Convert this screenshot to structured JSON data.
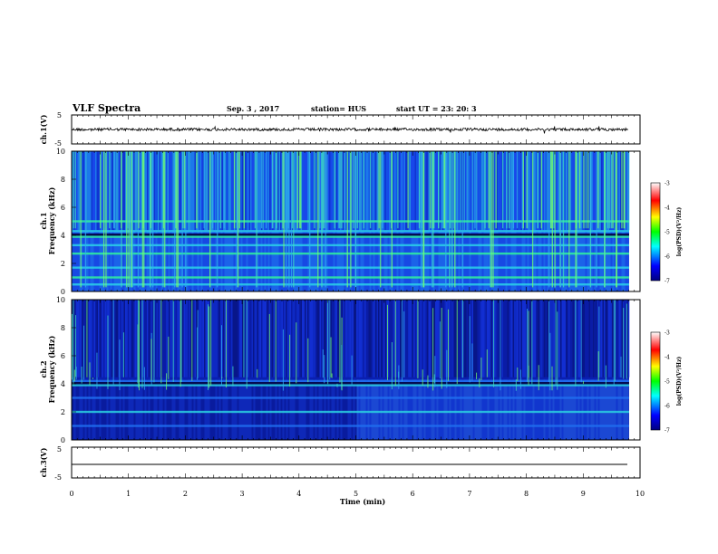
{
  "header": {
    "title": "VLF Spectra",
    "date": "Sep. 3  , 2017",
    "station": "station= HUS",
    "start": "start  UT  =   23: 20: 3"
  },
  "chart_data": [
    {
      "type": "line",
      "panel": "ch1-waveform",
      "ylabel": "ch.1(V)",
      "ylim": [
        -5,
        5
      ],
      "yticks": [
        "5",
        "-5"
      ],
      "xlim": [
        0,
        10
      ],
      "series": [
        {
          "values_note_mean": 0
        }
      ]
    },
    {
      "type": "heatmap",
      "panel": "ch1-spectrogram",
      "ylabel": "ch.1 Frequency (kHz)",
      "ylim": [
        0,
        10
      ],
      "yticks": [
        "0",
        "2",
        "4",
        "6",
        "8",
        "10"
      ],
      "xlim": [
        0,
        9.8
      ],
      "colorbar": {
        "label": "log(PSD)(V²/Hz)",
        "range": [
          -7,
          -3
        ],
        "ticks": [
          "-3",
          "-4",
          "-5",
          "-6",
          "-7"
        ]
      },
      "bands_khz": [
        0.5,
        1.0,
        1.7,
        2.7,
        3.3,
        3.9,
        4.3,
        5.0
      ]
    },
    {
      "type": "heatmap",
      "panel": "ch2-spectrogram",
      "ylabel": "ch.2 Frequency (kHz)",
      "ylim": [
        0,
        10
      ],
      "yticks": [
        "0",
        "2",
        "4",
        "6",
        "8",
        "10"
      ],
      "xlim": [
        0,
        9.8
      ],
      "colorbar": {
        "label": "log(PSD)(V²/Hz)",
        "range": [
          -7,
          -3
        ],
        "ticks": [
          "-3",
          "-4",
          "-5",
          "-6",
          "-7"
        ]
      },
      "bands_khz": [
        1.0,
        2.0,
        3.0,
        3.9,
        4.2
      ]
    },
    {
      "type": "line",
      "panel": "ch3-waveform",
      "ylabel": "ch.3(V)",
      "ylim": [
        -5,
        5
      ],
      "yticks": [
        "5",
        "-5"
      ],
      "xlim": [
        0,
        10
      ],
      "series": [
        {
          "values": [
            [
              0,
              -1.8
            ],
            [
              9.8,
              -1.8
            ]
          ]
        }
      ]
    }
  ],
  "xaxis": {
    "label": "Time  (min)",
    "ticks": [
      "0",
      "1",
      "2",
      "3",
      "4",
      "5",
      "6",
      "7",
      "8",
      "9",
      "10"
    ]
  }
}
